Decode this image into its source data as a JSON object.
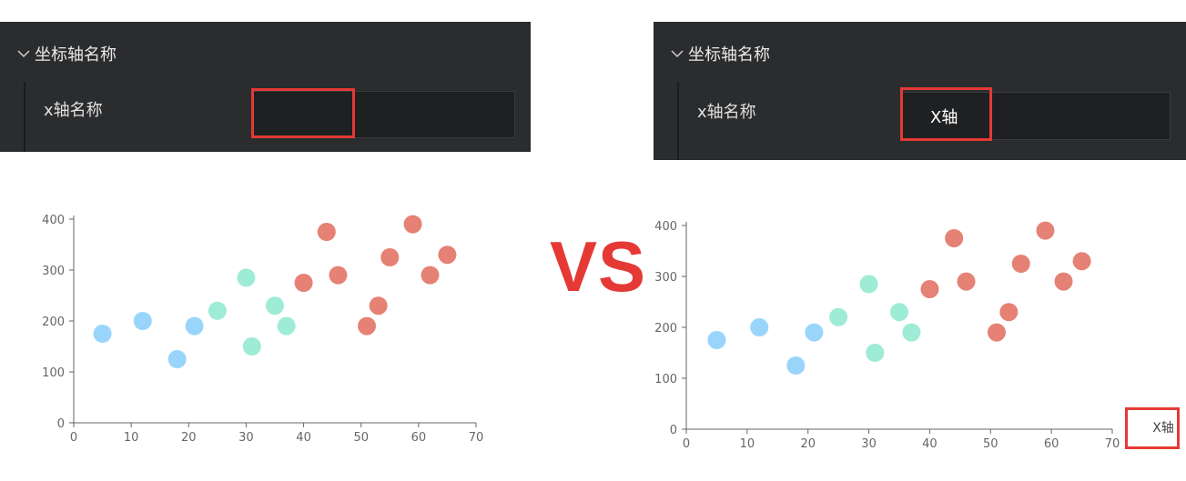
{
  "left_panel": {
    "section_title": "坐标轴名称",
    "field_label": "x轴名称",
    "field_value": ""
  },
  "right_panel": {
    "section_title": "坐标轴名称",
    "field_label": "x轴名称",
    "field_value": "X轴"
  },
  "vs_label": "VS",
  "colors": {
    "panel_bg": "#2b2c2e",
    "input_bg": "#1f2022",
    "highlight_red": "#e53935",
    "blue": "#87cefa",
    "teal": "#8de8cf",
    "red": "#e06b5d"
  },
  "chart_data": [
    {
      "type": "scatter",
      "xlim": [
        0,
        70
      ],
      "ylim": [
        0,
        400
      ],
      "x_ticks": [
        0,
        10,
        20,
        30,
        40,
        50,
        60,
        70
      ],
      "y_ticks": [
        0,
        100,
        200,
        300,
        400
      ],
      "xlabel": "",
      "series": [
        {
          "color": "#87cefa",
          "points": [
            [
              5,
              175
            ],
            [
              12,
              200
            ],
            [
              18,
              125
            ],
            [
              21,
              190
            ]
          ]
        },
        {
          "color": "#8de8cf",
          "points": [
            [
              25,
              220
            ],
            [
              30,
              285
            ],
            [
              31,
              150
            ],
            [
              35,
              230
            ],
            [
              37,
              190
            ]
          ]
        },
        {
          "color": "#e06b5d",
          "points": [
            [
              40,
              275
            ],
            [
              44,
              375
            ],
            [
              46,
              290
            ],
            [
              51,
              190
            ],
            [
              53,
              230
            ],
            [
              55,
              325
            ],
            [
              59,
              390
            ],
            [
              62,
              290
            ],
            [
              65,
              330
            ]
          ]
        }
      ]
    },
    {
      "type": "scatter",
      "xlim": [
        0,
        70
      ],
      "ylim": [
        0,
        400
      ],
      "x_ticks": [
        0,
        10,
        20,
        30,
        40,
        50,
        60,
        70
      ],
      "y_ticks": [
        0,
        100,
        200,
        300,
        400
      ],
      "xlabel": "X轴",
      "series": [
        {
          "color": "#87cefa",
          "points": [
            [
              5,
              175
            ],
            [
              12,
              200
            ],
            [
              18,
              125
            ],
            [
              21,
              190
            ]
          ]
        },
        {
          "color": "#8de8cf",
          "points": [
            [
              25,
              220
            ],
            [
              30,
              285
            ],
            [
              31,
              150
            ],
            [
              35,
              230
            ],
            [
              37,
              190
            ]
          ]
        },
        {
          "color": "#e06b5d",
          "points": [
            [
              40,
              275
            ],
            [
              44,
              375
            ],
            [
              46,
              290
            ],
            [
              51,
              190
            ],
            [
              53,
              230
            ],
            [
              55,
              325
            ],
            [
              59,
              390
            ],
            [
              62,
              290
            ],
            [
              65,
              330
            ]
          ]
        }
      ]
    }
  ]
}
